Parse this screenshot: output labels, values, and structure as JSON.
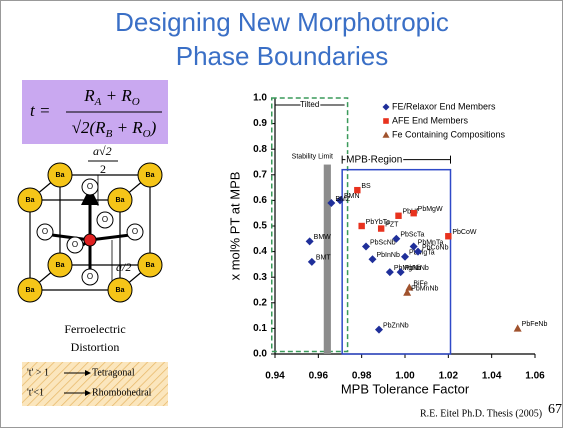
{
  "slide": {
    "title": [
      "Designing New Morphotropic",
      "Phase Boundaries"
    ],
    "formula": {
      "lhs": "t =",
      "numerator": [
        "R",
        "A",
        " + R",
        "O"
      ],
      "denominator": [
        "√2(R",
        "B",
        " + R",
        "O",
        ")"
      ]
    },
    "diagram": {
      "corner_label": "Ba",
      "oxygen_label": "O",
      "dimension_top": "a√2",
      "dimension_top_den": "2",
      "dimension_side": "a/2",
      "caption": [
        "Ferroelectric",
        "Distortion"
      ]
    },
    "rules": [
      {
        "condition": "'t' > 1",
        "result": "Tetragonal"
      },
      {
        "condition": "'t'<1",
        "result": "Rhombohedral"
      }
    ],
    "footer": "R.E. Eitel Ph.D. Thesis (2005)",
    "page_number": "67"
  },
  "chart_data": {
    "type": "scatter",
    "x_label": "MPB Tolerance Factor",
    "y_label": "x mol% PT at MPB",
    "xlim": [
      0.94,
      1.06
    ],
    "xticks": [
      0.94,
      0.96,
      0.98,
      {
        "value": 1.0,
        "label": "1.00"
      },
      1.02,
      1.04,
      1.06
    ],
    "ylim": [
      0,
      1
    ],
    "yticks": [
      {
        "value": 0,
        "label": "0.0"
      },
      0.1,
      0.2,
      0.3,
      0.4,
      0.5,
      0.6,
      0.7,
      0.8,
      0.9,
      {
        "value": 1,
        "label": "1.0"
      }
    ],
    "legend": "top-right",
    "series": [
      {
        "name": "FE/Relaxor End Members",
        "color": "#1f2f9a",
        "marker": "diamond",
        "labels": [
          "BMN",
          "BMZ",
          "BMW",
          "BMT",
          "PbScNb",
          "PbInNb",
          "PbScTa",
          "PbMgNb",
          "PbMgTa",
          "PbNiNb",
          "PbCoNb",
          "PbMnTa",
          "PbZnNb"
        ],
        "x": [
          0.97,
          0.966,
          0.956,
          0.957,
          0.982,
          0.985,
          0.996,
          0.993,
          1.0,
          0.998,
          1.006,
          1.004,
          0.988
        ],
        "values": [
          0.6,
          0.59,
          0.44,
          0.36,
          0.42,
          0.37,
          0.45,
          0.32,
          0.38,
          0.32,
          0.4,
          0.42,
          0.095
        ]
      },
      {
        "name": "AFE End Members",
        "color": "#e8321e",
        "marker": "square",
        "labels": [
          "BS",
          "PbYbTa",
          "PZT",
          "PbHf",
          "PbMgW",
          "PbCoW"
        ],
        "x": [
          0.978,
          0.98,
          0.989,
          0.997,
          1.004,
          1.02
        ],
        "values": [
          0.64,
          0.5,
          0.49,
          0.54,
          0.55,
          0.46
        ]
      },
      {
        "name": "Fe Containing Compositions",
        "color": "#a0522d",
        "marker": "triangle",
        "labels": [
          "BiFe",
          "PbMnNb",
          "PbFeNb"
        ],
        "x": [
          1.002,
          1.001,
          1.052
        ],
        "values": [
          0.26,
          0.24,
          0.1
        ]
      }
    ],
    "annotations": [
      {
        "text": "Tilted",
        "color": "#3a9a5a",
        "dashed": true,
        "x": [
          0.9385,
          0.9735
        ],
        "y": [
          0.01,
          1.0
        ]
      },
      {
        "text": "Stability Limit",
        "color": "#8c8c8c",
        "filled": true,
        "x": [
          0.9625,
          0.9658
        ],
        "y": [
          0,
          0.74
        ]
      },
      {
        "text": "MPB Region",
        "color": "#2f49c8",
        "x": [
          0.971,
          1.021
        ],
        "y": [
          0,
          0.72
        ]
      }
    ]
  }
}
